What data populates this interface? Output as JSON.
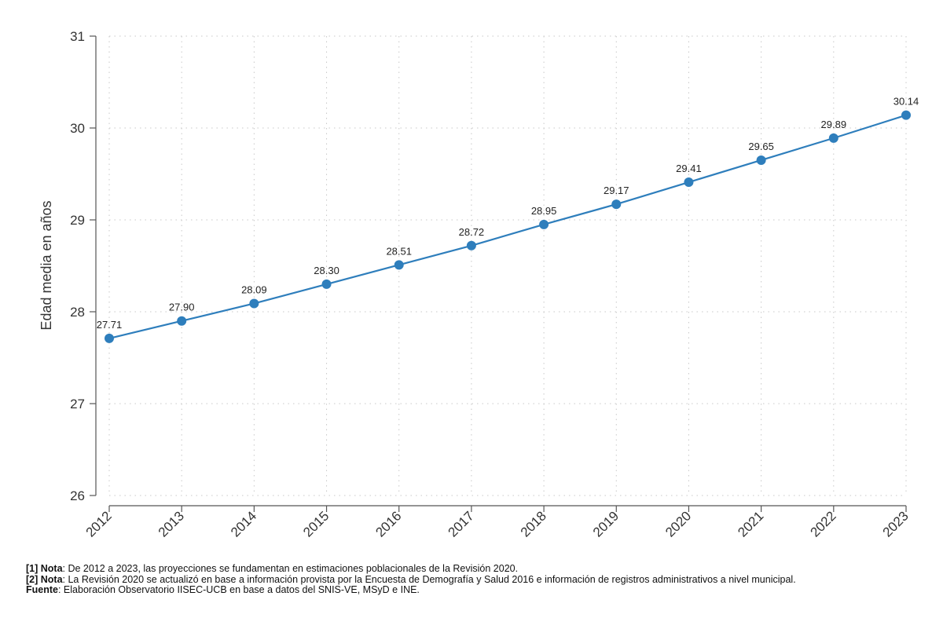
{
  "chart_data": {
    "type": "line",
    "title": "",
    "xlabel": "",
    "ylabel": "Edad media en años",
    "x": [
      "2012",
      "2013",
      "2014",
      "2015",
      "2016",
      "2017",
      "2018",
      "2019",
      "2020",
      "2021",
      "2022",
      "2023"
    ],
    "series": [
      {
        "values": [
          27.71,
          27.9,
          28.09,
          28.3,
          28.51,
          28.72,
          28.95,
          29.17,
          29.41,
          29.65,
          29.89,
          30.14
        ]
      }
    ],
    "data_labels": [
      "27.71",
      "27.90",
      "28.09",
      "28.30",
      "28.51",
      "28.72",
      "28.95",
      "29.17",
      "29.41",
      "29.65",
      "29.89",
      "30.14"
    ],
    "ylim": [
      26,
      31
    ],
    "yticks": [
      26,
      27,
      28,
      29,
      30,
      31
    ],
    "grid": true,
    "line_color": "#2e7ebc",
    "grid_color": "#c8c8c8"
  },
  "notes": {
    "note1_label": "[1] Nota",
    "note1_text": ": De 2012 a 2023, las proyecciones se fundamentan en estimaciones poblacionales de la Revisión 2020.",
    "note2_label": "[2] Nota",
    "note2_text": ": La Revisión 2020 se actualizó en base a información provista por la Encuesta de Demografía y Salud 2016 e información de registros administrativos a nivel municipal.",
    "source_label": "Fuente",
    "source_text": ": Elaboración Observatorio IISEC-UCB en base a datos del SNIS-VE, MSyD e INE."
  }
}
